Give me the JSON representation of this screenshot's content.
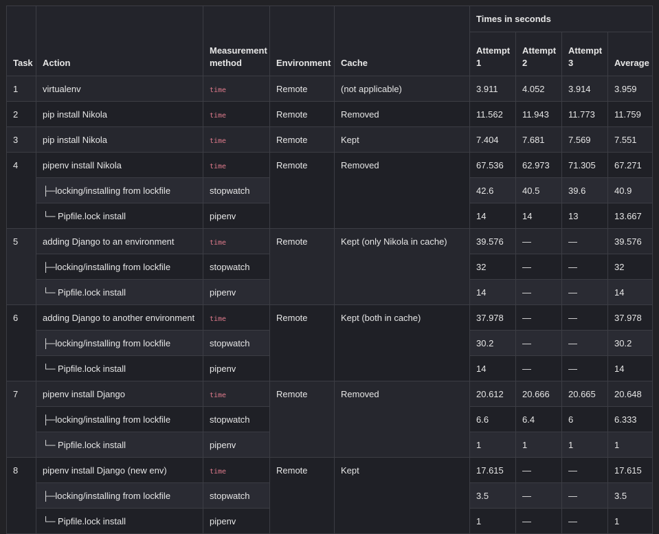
{
  "header": {
    "task": "Task",
    "action": "Action",
    "method": "Measurement method",
    "environment": "Environment",
    "cache": "Cache",
    "times_group": "Times in seconds",
    "attempt1": "Attempt 1",
    "attempt2": "Attempt 2",
    "attempt3": "Attempt 3",
    "average": "Average"
  },
  "rows": [
    {
      "task": "1",
      "action": "virtualenv",
      "method": "time",
      "environment": "Remote",
      "cache": "(not applicable)",
      "a1": "3.911",
      "a2": "4.052",
      "a3": "3.914",
      "avg": "3.959"
    },
    {
      "task": "2",
      "action": "pip install Nikola",
      "method": "time",
      "environment": "Remote",
      "cache": "Removed",
      "a1": "11.562",
      "a2": "11.943",
      "a3": "11.773",
      "avg": "11.759"
    },
    {
      "task": "3",
      "action": "pip install Nikola",
      "method": "time",
      "environment": "Remote",
      "cache": "Kept",
      "a1": "7.404",
      "a2": "7.681",
      "a3": "7.569",
      "avg": "7.551"
    },
    {
      "task": "4",
      "action": "pipenv install Nikola",
      "method": "time",
      "environment": "Remote",
      "cache": "Removed",
      "a1": "67.536",
      "a2": "62.973",
      "a3": "71.305",
      "avg": "67.271"
    },
    {
      "action": "├─locking/installing from lockfile",
      "method": "stopwatch",
      "a1": "42.6",
      "a2": "40.5",
      "a3": "39.6",
      "avg": "40.9"
    },
    {
      "action": "└─ Pipfile.lock install",
      "method": "pipenv",
      "a1": "14",
      "a2": "14",
      "a3": "13",
      "avg": "13.667"
    },
    {
      "task": "5",
      "action": "adding Django to an environment",
      "method": "time",
      "environment": "Remote",
      "cache": "Kept (only Nikola in cache)",
      "a1": "39.576",
      "a2": "—",
      "a3": "—",
      "avg": "39.576"
    },
    {
      "action": "├─locking/installing from lockfile",
      "method": "stopwatch",
      "a1": "32",
      "a2": "—",
      "a3": "—",
      "avg": "32"
    },
    {
      "action": "└─ Pipfile.lock install",
      "method": "pipenv",
      "a1": "14",
      "a2": "—",
      "a3": "—",
      "avg": "14"
    },
    {
      "task": "6",
      "action": "adding Django to another environment",
      "method": "time",
      "environment": "Remote",
      "cache": "Kept (both in cache)",
      "a1": "37.978",
      "a2": "—",
      "a3": "—",
      "avg": "37.978"
    },
    {
      "action": "├─locking/installing from lockfile",
      "method": "stopwatch",
      "a1": "30.2",
      "a2": "—",
      "a3": "—",
      "avg": "30.2"
    },
    {
      "action": "└─ Pipfile.lock install",
      "method": "pipenv",
      "a1": "14",
      "a2": "—",
      "a3": "—",
      "avg": "14"
    },
    {
      "task": "7",
      "action": "pipenv install Django",
      "method": "time",
      "environment": "Remote",
      "cache": "Removed",
      "a1": "20.612",
      "a2": "20.666",
      "a3": "20.665",
      "avg": "20.648"
    },
    {
      "action": "├─locking/installing from lockfile",
      "method": "stopwatch",
      "a1": "6.6",
      "a2": "6.4",
      "a3": "6",
      "avg": "6.333"
    },
    {
      "action": "└─ Pipfile.lock install",
      "method": "pipenv",
      "a1": "1",
      "a2": "1",
      "a3": "1",
      "avg": "1"
    },
    {
      "task": "8",
      "action": "pipenv install Django (new env)",
      "method": "time",
      "environment": "Remote",
      "cache": "Kept",
      "a1": "17.615",
      "a2": "—",
      "a3": "—",
      "avg": "17.615"
    },
    {
      "action": "├─locking/installing from lockfile",
      "method": "stopwatch",
      "a1": "3.5",
      "a2": "—",
      "a3": "—",
      "avg": "3.5"
    },
    {
      "action": "└─ Pipfile.lock install",
      "method": "pipenv",
      "a1": "1",
      "a2": "—",
      "a3": "—",
      "avg": "1"
    }
  ]
}
